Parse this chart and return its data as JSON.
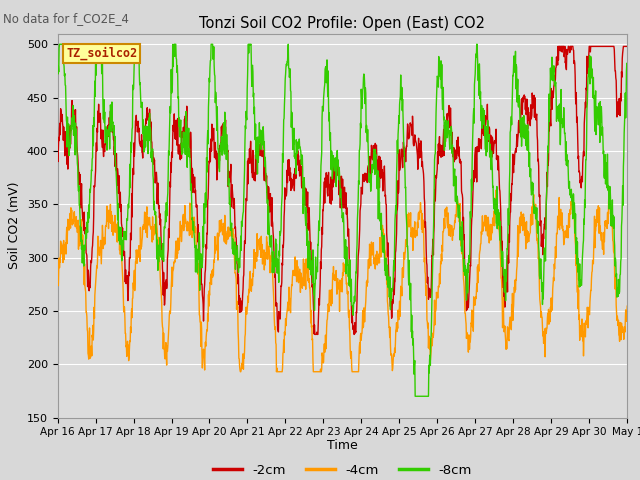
{
  "title": "Tonzi Soil CO2 Profile: Open (East) CO2",
  "top_left_text": "No data for f_CO2E_4",
  "ylabel": "Soil CO2 (mV)",
  "xlabel": "Time",
  "box_label": "TZ_soilco2",
  "ylim": [
    150,
    510
  ],
  "yticks": [
    150,
    200,
    250,
    300,
    350,
    400,
    450,
    500
  ],
  "xtick_labels": [
    "Apr 16",
    "Apr 17",
    "Apr 18",
    "Apr 19",
    "Apr 20",
    "Apr 21",
    "Apr 22",
    "Apr 23",
    "Apr 24",
    "Apr 25",
    "Apr 26",
    "Apr 27",
    "Apr 28",
    "Apr 29",
    "Apr 30",
    "May 1"
  ],
  "line_colors": [
    "#cc0000",
    "#ff9900",
    "#33cc00"
  ],
  "line_labels": [
    "-2cm",
    "-4cm",
    "-8cm"
  ],
  "bg_color": "#dcdcdc",
  "grid_color": "#ffffff",
  "fig_bg": "#d8d8d8"
}
